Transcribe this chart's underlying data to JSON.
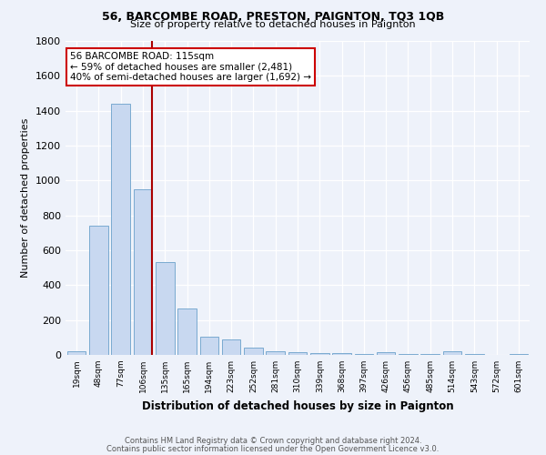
{
  "title1": "56, BARCOMBE ROAD, PRESTON, PAIGNTON, TQ3 1QB",
  "title2": "Size of property relative to detached houses in Paignton",
  "xlabel": "Distribution of detached houses by size in Paignton",
  "ylabel": "Number of detached properties",
  "categories": [
    "19sqm",
    "48sqm",
    "77sqm",
    "106sqm",
    "135sqm",
    "165sqm",
    "194sqm",
    "223sqm",
    "252sqm",
    "281sqm",
    "310sqm",
    "339sqm",
    "368sqm",
    "397sqm",
    "426sqm",
    "456sqm",
    "485sqm",
    "514sqm",
    "543sqm",
    "572sqm",
    "601sqm"
  ],
  "values": [
    20,
    740,
    1440,
    950,
    530,
    265,
    105,
    90,
    40,
    20,
    15,
    10,
    8,
    5,
    14,
    5,
    3,
    20,
    3,
    2,
    3
  ],
  "bar_color": "#c8d8f0",
  "bar_edge_color": "#7aaad0",
  "vline_color": "#aa0000",
  "vline_index": 3,
  "annotation_text": "56 BARCOMBE ROAD: 115sqm\n← 59% of detached houses are smaller (2,481)\n40% of semi-detached houses are larger (1,692) →",
  "annotation_box_color": "#ffffff",
  "annotation_box_edge": "#cc0000",
  "ylim": [
    0,
    1800
  ],
  "yticks": [
    0,
    200,
    400,
    600,
    800,
    1000,
    1200,
    1400,
    1600,
    1800
  ],
  "footnote1": "Contains HM Land Registry data © Crown copyright and database right 2024.",
  "footnote2": "Contains public sector information licensed under the Open Government Licence v3.0.",
  "background_color": "#eef2fa"
}
